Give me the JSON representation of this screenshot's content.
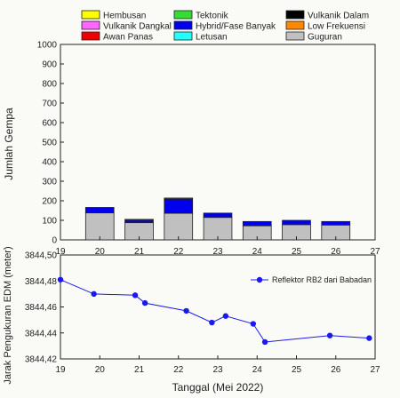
{
  "chart_data": [
    {
      "type": "bar",
      "stacked": true,
      "xlabel": "",
      "ylabel": "Jumlah Gempa",
      "xlim": [
        19,
        27
      ],
      "ylim": [
        0,
        1000
      ],
      "xticks": [
        "19",
        "20",
        "21",
        "22",
        "23",
        "24",
        "25",
        "26",
        "27"
      ],
      "yticks": [
        "0",
        "100",
        "200",
        "300",
        "400",
        "500",
        "600",
        "700",
        "800",
        "900",
        "1000"
      ],
      "x": [
        20,
        21,
        22,
        23,
        24,
        25,
        26
      ],
      "legend_position": "top",
      "series": [
        {
          "name": "Hembusan",
          "color": "#ffff00",
          "values": [
            0,
            0,
            0,
            0,
            0,
            0,
            0
          ]
        },
        {
          "name": "Tektonik",
          "color": "#33dd33",
          "values": [
            0,
            0,
            0,
            0,
            0,
            0,
            0
          ]
        },
        {
          "name": "Vulkanik Dalam",
          "color": "#000000",
          "values": [
            0,
            0,
            0,
            0,
            0,
            0,
            0
          ]
        },
        {
          "name": "Vulkanik Dangkal",
          "color": "#ff66ff",
          "values": [
            0,
            0,
            0,
            0,
            0,
            0,
            0
          ]
        },
        {
          "name": "Hybrid/Fase Banyak",
          "color": "#0000ee",
          "values": [
            28,
            12,
            72,
            22,
            22,
            22,
            18
          ]
        },
        {
          "name": "Low Frekuensi",
          "color": "#ff8800",
          "values": [
            0,
            0,
            0,
            0,
            0,
            0,
            0
          ]
        },
        {
          "name": "Awan Panas",
          "color": "#ee0000",
          "values": [
            0,
            5,
            6,
            0,
            0,
            0,
            0
          ]
        },
        {
          "name": "Letusan",
          "color": "#22ffff",
          "values": [
            0,
            0,
            0,
            0,
            0,
            0,
            0
          ]
        },
        {
          "name": "Guguran",
          "color": "#c0c0c0",
          "values": [
            138,
            88,
            136,
            115,
            72,
            78,
            76
          ]
        }
      ]
    },
    {
      "type": "line",
      "xlabel": "Tanggal (Mei 2022)",
      "ylabel": "Jarak Pengukuran EDM (meter)",
      "xlim": [
        19,
        27
      ],
      "ylim": [
        3844.42,
        3844.5
      ],
      "xticks": [
        "19",
        "20",
        "21",
        "22",
        "23",
        "24",
        "25",
        "26",
        "27"
      ],
      "yticks": [
        "3844,42",
        "3844,44",
        "3844,46",
        "3844,48",
        "3844,50"
      ],
      "legend_position": "top-right",
      "series": [
        {
          "name": "Reflektor RB2 dari Babadan",
          "color": "#1a1aee",
          "x": [
            19.0,
            19.85,
            20.9,
            21.15,
            22.2,
            22.85,
            23.2,
            23.9,
            24.2,
            25.85,
            26.85
          ],
          "y": [
            3844.481,
            3844.47,
            3844.469,
            3844.463,
            3844.457,
            3844.448,
            3844.453,
            3844.447,
            3844.433,
            3844.438,
            3844.436
          ]
        }
      ]
    }
  ]
}
